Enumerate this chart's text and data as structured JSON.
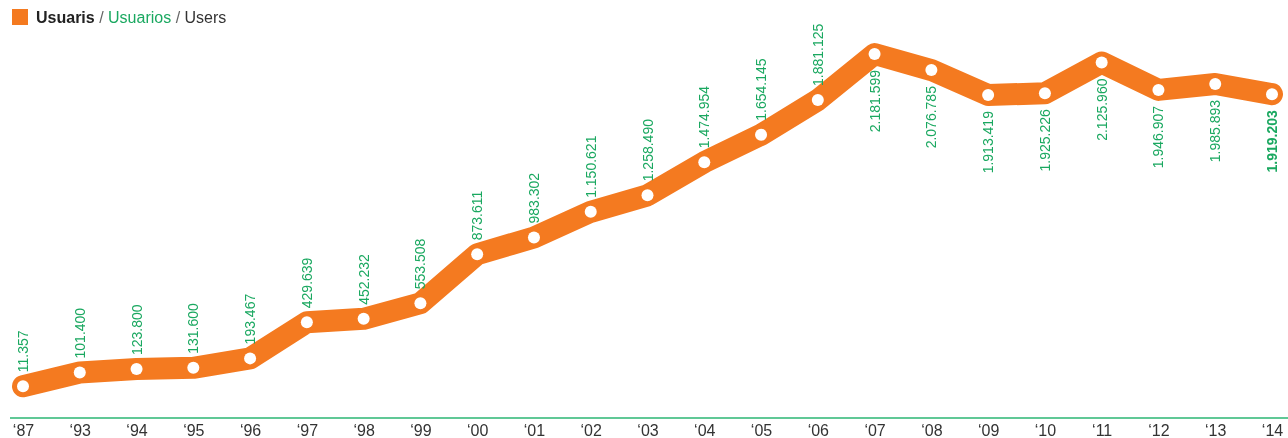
{
  "chart_data": {
    "type": "line",
    "categories": [
      "‘87",
      "‘93",
      "‘94",
      "‘95",
      "‘96",
      "‘97",
      "‘98",
      "‘99",
      "‘00",
      "‘01",
      "‘02",
      "‘03",
      "‘04",
      "‘05",
      "‘06",
      "‘07",
      "‘08",
      "‘09",
      "‘10",
      "‘11",
      "‘12",
      "‘13",
      "‘14"
    ],
    "series": [
      {
        "name": "Usuaris / Usuarios / Users",
        "color": "#f47a20",
        "values": [
          11357,
          101400,
          123800,
          131600,
          193467,
          429639,
          452232,
          553508,
          873611,
          983302,
          1150621,
          1258490,
          1474954,
          1654145,
          1881125,
          2181599,
          2076785,
          1913419,
          1925226,
          2125960,
          1946907,
          1985893,
          1919203
        ],
        "value_labels": [
          "11.357",
          "101.400",
          "123.800",
          "131.600",
          "193.467",
          "429.639",
          "452.232",
          "553.508",
          "873.611",
          "983.302",
          "1.150.621",
          "1.258.490",
          "1.474.954",
          "1.654.145",
          "1.881.125",
          "2.181.599",
          "2.076.785",
          "1.913.419",
          "1.925.226",
          "2.125.960",
          "1.946.907",
          "1.985.893",
          "1.919.203"
        ]
      }
    ],
    "marker": "circle",
    "legend": "top left"
  }
}
